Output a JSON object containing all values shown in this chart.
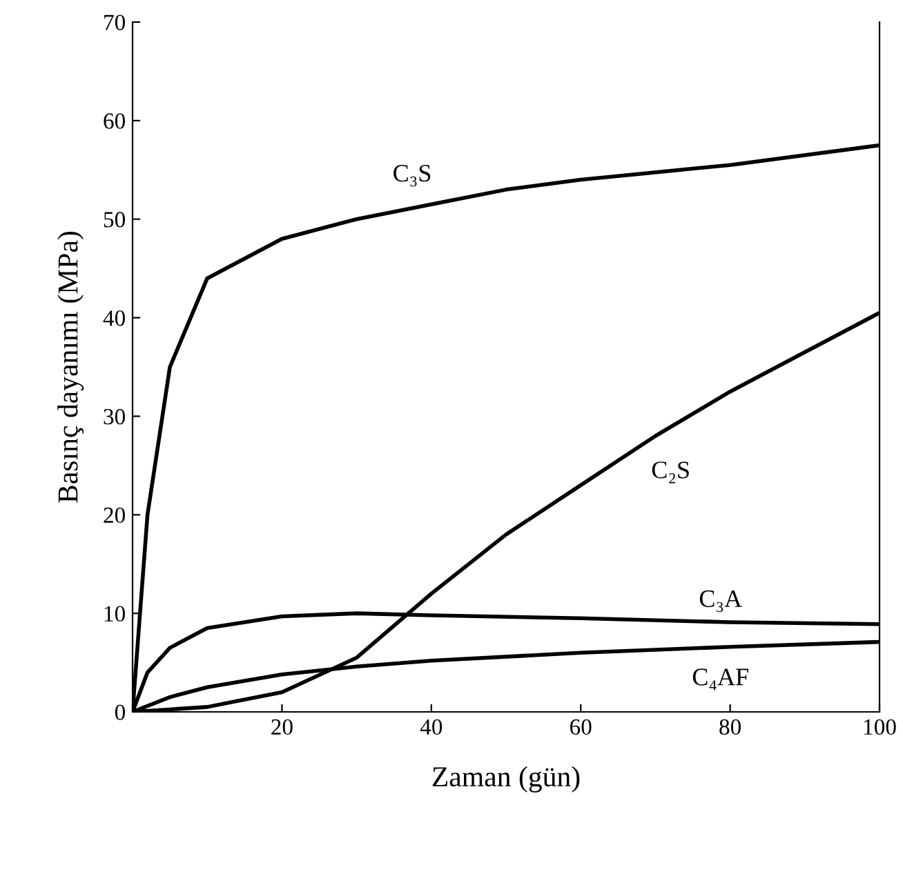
{
  "chart_data": {
    "type": "line",
    "xlabel": "Zaman (gün)",
    "ylabel": "Basınç dayanımı (MPa)",
    "xlim": [
      0,
      100
    ],
    "ylim": [
      0,
      70
    ],
    "xticks": [
      {
        "value": 0,
        "label": null
      },
      20,
      40,
      60,
      80,
      100
    ],
    "yticks": [
      0,
      10,
      20,
      30,
      40,
      50,
      60,
      70
    ],
    "grid": false,
    "marker": "none",
    "line_style": "solid",
    "series": [
      {
        "name": "C₃S",
        "color": "#000000",
        "x": [
          0,
          2,
          5,
          10,
          20,
          30,
          40,
          50,
          60,
          80,
          100
        ],
        "values": [
          0,
          20,
          35,
          44,
          48,
          50,
          51.5,
          53,
          54,
          55.5,
          57.5
        ]
      },
      {
        "name": "C₂S",
        "color": "#000000",
        "x": [
          0,
          10,
          20,
          30,
          40,
          50,
          60,
          70,
          80,
          90,
          100
        ],
        "values": [
          0,
          0.5,
          2,
          5.5,
          12,
          18,
          23,
          28,
          32.5,
          36.5,
          40.5
        ]
      },
      {
        "name": "C₃A",
        "color": "#000000",
        "x": [
          0,
          2,
          5,
          10,
          20,
          30,
          40,
          60,
          80,
          100
        ],
        "values": [
          0,
          4,
          6.5,
          8.5,
          9.7,
          10,
          9.8,
          9.5,
          9.1,
          8.9
        ]
      },
      {
        "name": "C₄AF",
        "color": "#000000",
        "x": [
          0,
          5,
          10,
          20,
          30,
          40,
          60,
          80,
          100
        ],
        "values": [
          0,
          1.5,
          2.5,
          3.8,
          4.6,
          5.2,
          6,
          6.6,
          7.1
        ]
      }
    ]
  }
}
